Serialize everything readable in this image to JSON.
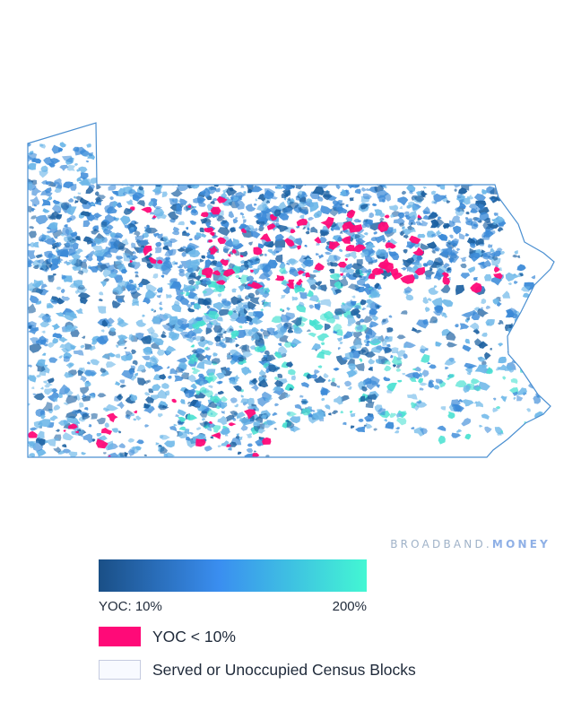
{
  "brand": {
    "left": "BROADBAND.",
    "right": "MONEY"
  },
  "legend": {
    "gradient": {
      "from": "#1a4f86",
      "mid": "#3a8ef0",
      "to": "#43f7d3",
      "min_label": "YOC: 10%",
      "max_label": "200%"
    },
    "items": [
      {
        "color": "#ff0a78",
        "label": "YOC < 10%"
      },
      {
        "color": "#f8faff",
        "border": "#c5cbe0",
        "label": "Served or Unoccupied Census Blocks"
      }
    ]
  },
  "map": {
    "region": "Pennsylvania",
    "outline_color": "#4a8fd1",
    "colors": {
      "dark": "#1a5fa0",
      "blue": "#3b8ad8",
      "light": "#6ab6e8",
      "teal": "#45e0d0",
      "pink": "#ff0a78"
    }
  }
}
